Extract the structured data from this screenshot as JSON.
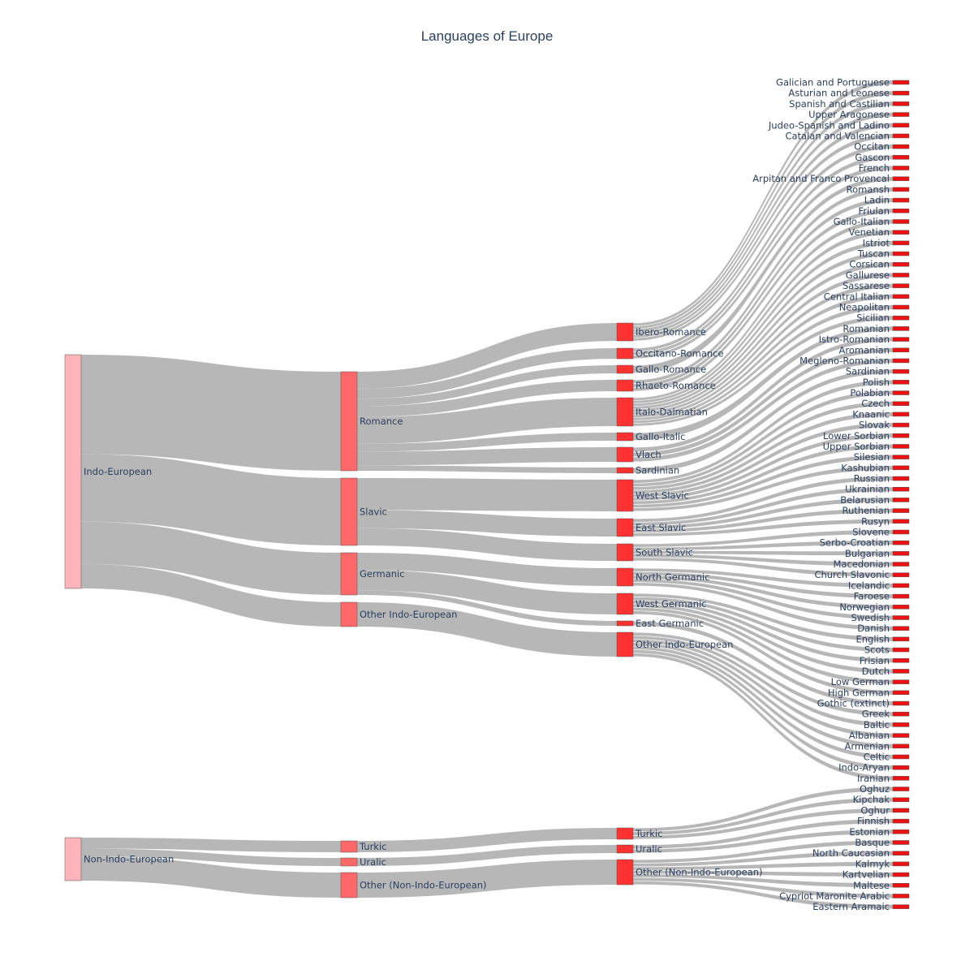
{
  "chart_data": {
    "type": "sankey",
    "title": "Languages of Europe",
    "colors": {
      "root": "#ffb3ba",
      "family": "#ff6868",
      "branch": "#ff3232",
      "leaf": "#ee1111",
      "link": "#b3b3b3"
    },
    "roots": [
      "Indo-European",
      "Non-Indo-European"
    ],
    "families": [
      {
        "name": "Romance",
        "parent": "Indo-European"
      },
      {
        "name": "Slavic",
        "parent": "Indo-European"
      },
      {
        "name": "Germanic",
        "parent": "Indo-European"
      },
      {
        "name": "Other Indo-European",
        "parent": "Indo-European"
      },
      {
        "name": "Turkic",
        "parent": "Non-Indo-European"
      },
      {
        "name": "Uralic",
        "parent": "Non-Indo-European"
      },
      {
        "name": "Other (Non-Indo-European)",
        "parent": "Non-Indo-European"
      }
    ],
    "branches": [
      {
        "name": "Ibero-Romance",
        "parent": "Romance",
        "languages": [
          "Galician and Portuguese",
          "Asturian and Leonese",
          "Spanish and Castilian",
          "Upper Aragonese",
          "Judeo-Spanish and Ladino",
          "Catalan and Valencian"
        ]
      },
      {
        "name": "Occitano-Romance",
        "parent": "Romance",
        "languages": [
          "Occitan",
          "Gascon",
          "French"
        ]
      },
      {
        "name": "Gallo-Romance",
        "parent": "Romance",
        "languages": [
          "Arpitan and Franco Provencal"
        ]
      },
      {
        "name": "Rhaeto-Romance",
        "parent": "Romance",
        "languages": [
          "Romansh",
          "Ladin",
          "Friulan"
        ]
      },
      {
        "name": "Italo-Dalmatian",
        "parent": "Romance",
        "languages": [
          "Gallo-Italian",
          "Venetian",
          "Istriot",
          "Tuscan",
          "Corsican",
          "Gallurese",
          "Sassarese",
          "Central Italian",
          "Neapolitan",
          "Sicilian"
        ]
      },
      {
        "name": "Gallo-Italic",
        "parent": "Romance",
        "languages": [
          "Romanian"
        ]
      },
      {
        "name": "Vlach",
        "parent": "Romance",
        "languages": [
          "Istro-Romanian",
          "Aromanian",
          "Megleno-Romanian"
        ]
      },
      {
        "name": "Sardinian",
        "parent": "Romance",
        "languages": [
          "Sardinian"
        ]
      },
      {
        "name": "West Slavic",
        "parent": "Slavic",
        "languages": [
          "Polish",
          "Polabian",
          "Czech",
          "Knaanic",
          "Slovak",
          "Lower Sorbian",
          "Upper Sorbian",
          "Silesian",
          "Kashubian"
        ]
      },
      {
        "name": "East Slavic",
        "parent": "Slavic",
        "languages": [
          "Russian",
          "Ukrainian",
          "Belarusian",
          "Ruthenian",
          "Rusyn"
        ]
      },
      {
        "name": "South Slavic",
        "parent": "Slavic",
        "languages": [
          "Slovene",
          "Serbo-Croatian",
          "Bulgarian",
          "Macedonian",
          "Church Slavonic"
        ]
      },
      {
        "name": "North Germanic",
        "parent": "Germanic",
        "languages": [
          "Icelandic",
          "Faroese",
          "Norwegian",
          "Swedish",
          "Danish"
        ]
      },
      {
        "name": "West Germanic",
        "parent": "Germanic",
        "languages": [
          "English",
          "Scots",
          "Frisian",
          "Dutch",
          "Low German",
          "High German"
        ]
      },
      {
        "name": "East Germanic",
        "parent": "Germanic",
        "languages": [
          "Gothic (extinct)"
        ]
      },
      {
        "name": "Other Indo-European",
        "parent": "Other Indo-European",
        "languages": [
          "Greek",
          "Baltic",
          "Albanian",
          "Armenian",
          "Celtic",
          "Indo-Aryan",
          "Iranian"
        ]
      },
      {
        "name": "Turkic",
        "parent": "Turkic",
        "languages": [
          "Oghuz",
          "Kipchak",
          "Oghur"
        ]
      },
      {
        "name": "Uralic",
        "parent": "Uralic",
        "languages": [
          "Finnish",
          "Estonian"
        ]
      },
      {
        "name": "Other (Non-Indo-European)",
        "parent": "Other (Non-Indo-European)",
        "languages": [
          "Basque",
          "North Caucasian",
          "Kalmyk",
          "Kartvelian",
          "Maltese",
          "Cypriot Maronite Arabic",
          "Eastern Aramaic"
        ]
      }
    ],
    "leaves": [
      "Galician and Portuguese",
      "Asturian and Leonese",
      "Spanish and Castilian",
      "Upper Aragonese",
      "Judeo-Spanish and Ladino",
      "Catalan and Valencian",
      "Occitan",
      "Gascon",
      "French",
      "Arpitan and Franco Provencal",
      "Romansh",
      "Ladin",
      "Friulan",
      "Gallo-Italian",
      "Venetian",
      "Istriot",
      "Tuscan",
      "Corsican",
      "Gallurese",
      "Sassarese",
      "Central Italian",
      "Neapolitan",
      "Sicilian",
      "Romanian",
      "Istro-Romanian",
      "Aromanian",
      "Megleno-Romanian",
      "Sardinian",
      "Polish",
      "Polabian",
      "Czech",
      "Knaanic",
      "Slovak",
      "Lower Sorbian",
      "Upper Sorbian",
      "Silesian",
      "Kashubian",
      "Russian",
      "Ukrainian",
      "Belarusian",
      "Ruthenian",
      "Rusyn",
      "Slovene",
      "Serbo-Croatian",
      "Bulgarian",
      "Macedonian",
      "Church Slavonic",
      "Icelandic",
      "Faroese",
      "Norwegian",
      "Swedish",
      "Danish",
      "English",
      "Scots",
      "Frisian",
      "Dutch",
      "Low German",
      "High German",
      "Gothic (extinct)",
      "Greek",
      "Baltic",
      "Albanian",
      "Armenian",
      "Celtic",
      "Indo-Aryan",
      "Iranian",
      "Oghuz",
      "Kipchak",
      "Oghur",
      "Finnish",
      "Estonian",
      "Basque",
      "North Caucasian",
      "Kalmyk",
      "Kartvelian",
      "Maltese",
      "Cypriot Maronite Arabic",
      "Eastern Aramaic"
    ]
  }
}
